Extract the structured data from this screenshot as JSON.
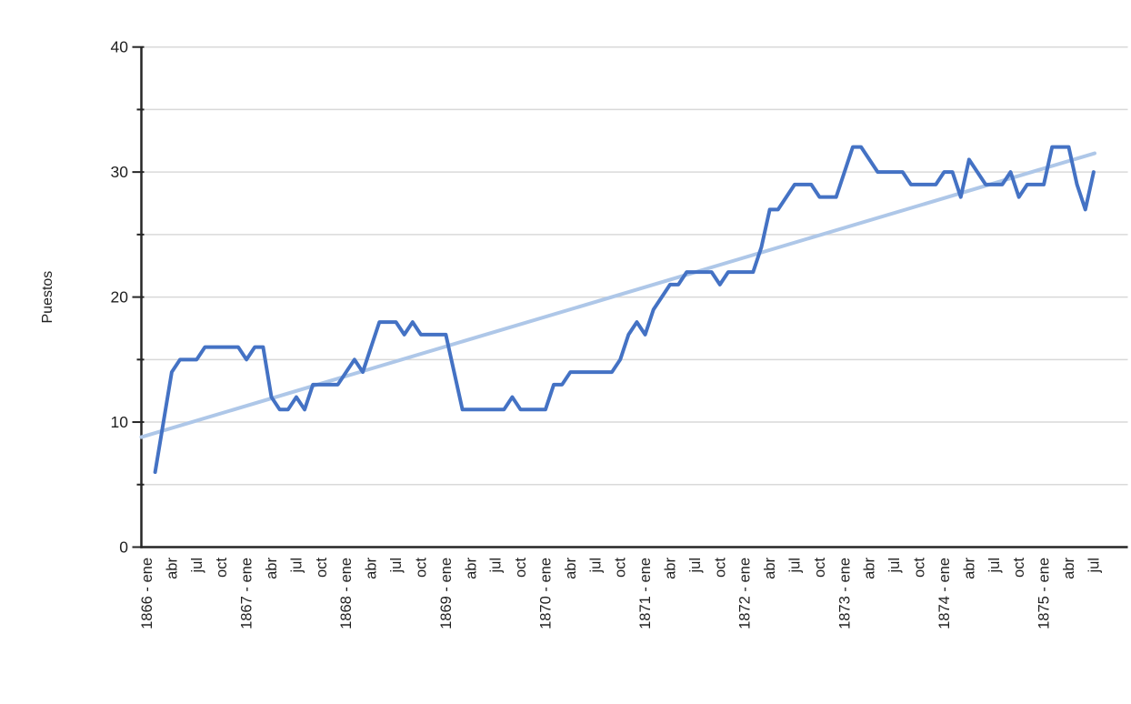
{
  "chart_data": {
    "type": "line",
    "title": "",
    "xlabel": "",
    "ylabel": "Puestos",
    "ylim": [
      0,
      40
    ],
    "ytick_labels": [
      "0",
      "10",
      "20",
      "30",
      "40"
    ],
    "ytick_values": [
      0,
      10,
      20,
      30,
      40
    ],
    "grid_interval": 5,
    "grid_on": true,
    "legend_position": "none",
    "months_per_tick": 3,
    "x_tick_labels": [
      "1866 - ene",
      "abr",
      "jul",
      "oct",
      "1867 - ene",
      "abr",
      "jul",
      "oct",
      "1868 - ene",
      "abr",
      "jul",
      "oct",
      "1869 - ene",
      "abr",
      "jul",
      "oct",
      "1870 - ene",
      "abr",
      "jul",
      "oct",
      "1871 - ene",
      "abr",
      "jul",
      "oct",
      "1872 - ene",
      "abr",
      "jul",
      "oct",
      "1873 - ene",
      "abr",
      "jul",
      "oct",
      "1874 - ene",
      "abr",
      "jul",
      "oct",
      "1875 - ene",
      "abr",
      "jul"
    ],
    "series": [
      {
        "name": "Puestos",
        "color": "#4472C4",
        "width": 4,
        "values": [
          null,
          6,
          10,
          14,
          15,
          15,
          15,
          16,
          16,
          16,
          16,
          16,
          15,
          16,
          16,
          12,
          11,
          11,
          12,
          11,
          13,
          13,
          13,
          13,
          14,
          15,
          14,
          16,
          18,
          18,
          18,
          17,
          18,
          17,
          17,
          17,
          17,
          14,
          11,
          11,
          11,
          11,
          11,
          11,
          12,
          11,
          11,
          11,
          11,
          13,
          13,
          14,
          14,
          14,
          14,
          14,
          14,
          15,
          17,
          18,
          17,
          19,
          20,
          21,
          21,
          22,
          22,
          22,
          22,
          21,
          22,
          22,
          22,
          22,
          24,
          27,
          27,
          28,
          29,
          29,
          29,
          28,
          28,
          28,
          30,
          32,
          32,
          31,
          30,
          30,
          30,
          30,
          29,
          29,
          29,
          29,
          30,
          30,
          28,
          31,
          30,
          29,
          29,
          29,
          30,
          28,
          29,
          29,
          29,
          32,
          32,
          32,
          29,
          27,
          30
        ]
      }
    ],
    "trendline": {
      "color": "#AEC7E8",
      "width": 4,
      "start_value": 8.8,
      "end_value": 31.5
    },
    "axis_color": "#262626",
    "grid_color": "#D9D9D9",
    "text_color": "#1f1f1f",
    "background_color": "#ffffff"
  }
}
